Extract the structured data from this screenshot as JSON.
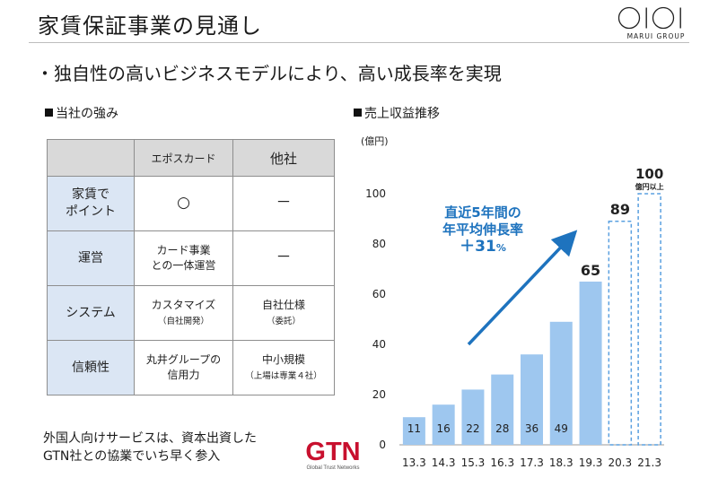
{
  "header": {
    "title": "家賃保証事業の見通し",
    "logo_text": "MARUI GROUP"
  },
  "headline": "・独自性の高いビジネスモデルにより、高い成長率を実現",
  "left_section": {
    "label": "当社の強み"
  },
  "table": {
    "headers": [
      "エポスカード",
      "他社"
    ],
    "rows": [
      {
        "label_lines": [
          "家賃で",
          "ポイント"
        ],
        "epos_lines": [
          "○"
        ],
        "epos_sub": "",
        "other_lines": [
          "－"
        ],
        "other_sub": ""
      },
      {
        "label_lines": [
          "運営"
        ],
        "epos_lines": [
          "カード事業",
          "との一体運営"
        ],
        "epos_sub": "",
        "other_lines": [
          "－"
        ],
        "other_sub": ""
      },
      {
        "label_lines": [
          "システム"
        ],
        "epos_lines": [
          "カスタマイズ"
        ],
        "epos_sub": "（自社開発）",
        "other_lines": [
          "自社仕様"
        ],
        "other_sub": "（委託）"
      },
      {
        "label_lines": [
          "信頼性"
        ],
        "epos_lines": [
          "丸井グループの",
          "信用力"
        ],
        "epos_sub": "",
        "other_lines": [
          "中小規模"
        ],
        "other_sub": "（上場は専業４社）"
      }
    ]
  },
  "note": {
    "line1": "外国人向けサービスは、資本出資した",
    "line2": "GTN社との協業でいち早く参入"
  },
  "gtn_logo": {
    "text": "GTN",
    "sub": "Global Trust Networks"
  },
  "right_section": {
    "label": "売上収益推移"
  },
  "cagr": {
    "line1": "直近5年間の",
    "line2": "年平均伸長率",
    "value": "＋31",
    "unit": "%"
  },
  "colors": {
    "bar": "#9ec7ef",
    "bar_outline": "#5aa0e0",
    "arrow": "#1e73be",
    "cagr_text": "#1e73be"
  },
  "chart_data": {
    "type": "bar",
    "title": "",
    "ylabel": "(億円)",
    "ylim": [
      0,
      100
    ],
    "yticks": [
      0,
      20,
      40,
      60,
      80,
      100
    ],
    "categories": [
      "13.3",
      "14.3",
      "15.3",
      "16.3",
      "17.3",
      "18.3",
      "19.3",
      "20.3",
      "21.3"
    ],
    "values": [
      11,
      16,
      22,
      28,
      36,
      49,
      65,
      89,
      100
    ],
    "value_labels": [
      "11",
      "16",
      "22",
      "28",
      "36",
      "49",
      "65",
      "89",
      "100"
    ],
    "forecast": [
      false,
      false,
      false,
      false,
      false,
      false,
      false,
      true,
      true
    ],
    "annotations": {
      "last_bar_note": "億円以上"
    },
    "grid": false,
    "legend": "none"
  }
}
